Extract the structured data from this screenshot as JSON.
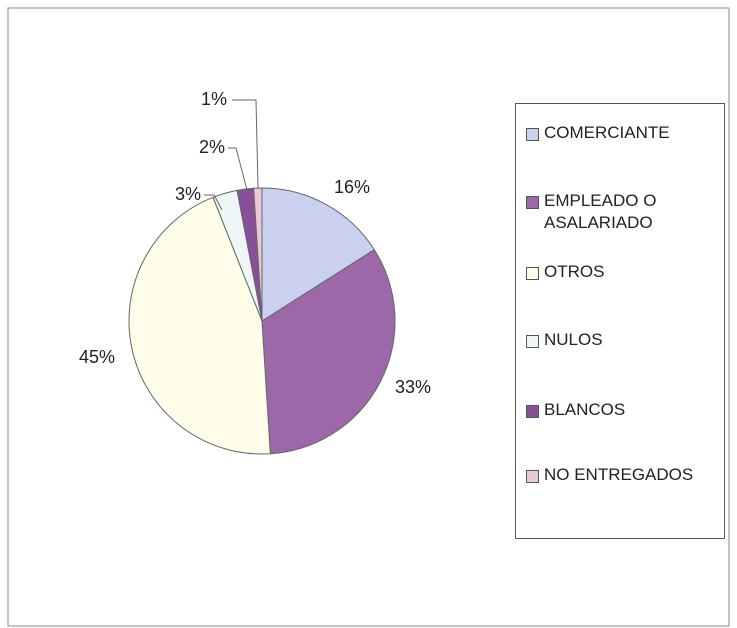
{
  "chart_data": {
    "type": "pie",
    "categories": [
      "COMERCIANTE",
      "EMPLEADO O ASALARIADO",
      "OTROS",
      "NULOS",
      "BLANCOS",
      "NO ENTREGADOS"
    ],
    "values": [
      16,
      33,
      45,
      3,
      2,
      1
    ],
    "value_labels": [
      "16%",
      "33%",
      "45%",
      "3%",
      "2%",
      "1%"
    ],
    "colors": [
      "#c9d1ef",
      "#9d68a8",
      "#fdfde9",
      "#eef6f8",
      "#88509a",
      "#ebc9d2"
    ],
    "legend": "right"
  }
}
